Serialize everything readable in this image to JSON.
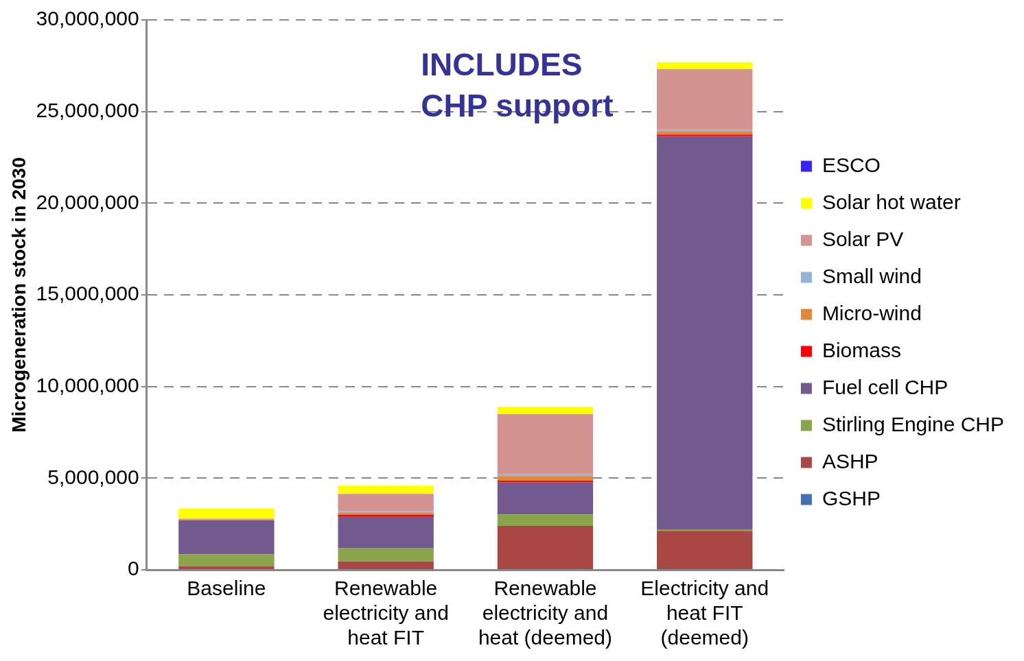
{
  "chart_data": {
    "type": "bar",
    "stacked": true,
    "ylabel": "Microgeneration stock in 2030",
    "categories": [
      "Baseline",
      "Renewable electricity and heat FIT",
      "Renewable electricity and heat (deemed)",
      "Electricity and heat FIT (deemed)"
    ],
    "series": [
      {
        "name": "GSHP",
        "color": "#4273b0",
        "values": [
          0,
          0,
          0,
          0
        ]
      },
      {
        "name": "ASHP",
        "color": "#a84744",
        "values": [
          200000,
          460000,
          2390000,
          2120000
        ]
      },
      {
        "name": "Stirling Engine CHP",
        "color": "#8aa44b",
        "values": [
          640000,
          740000,
          630000,
          90000
        ]
      },
      {
        "name": "Fuel cell CHP",
        "color": "#72598e",
        "values": [
          1850000,
          1720000,
          1750000,
          21440000
        ]
      },
      {
        "name": "Biomass",
        "color": "#ff0000",
        "values": [
          0,
          90000,
          90000,
          90000
        ]
      },
      {
        "name": "Micro-wind",
        "color": "#e0883c",
        "values": [
          0,
          120000,
          260000,
          160000
        ]
      },
      {
        "name": "Small wind",
        "color": "#95b3d7",
        "values": [
          0,
          80000,
          90000,
          110000
        ]
      },
      {
        "name": "Solar PV",
        "color": "#d39391",
        "values": [
          100000,
          930000,
          3280000,
          3310000
        ]
      },
      {
        "name": "Solar hot water",
        "color": "#ffff00",
        "values": [
          550000,
          450000,
          400000,
          370000
        ]
      },
      {
        "name": "ESCO",
        "color": "#3a1fff",
        "values": [
          0,
          0,
          0,
          0
        ]
      }
    ],
    "ylim": [
      0,
      30000000
    ],
    "yticks": [
      0,
      {
        "value": 5000000,
        "label": "5,000,000"
      },
      {
        "value": 10000000,
        "label": "10,000,000"
      },
      {
        "value": 15000000,
        "label": "15,000,000"
      },
      {
        "value": 20000000,
        "label": "20,000,000"
      },
      {
        "value": 25000000,
        "label": "25,000,000"
      },
      {
        "value": 30000000,
        "label": "30,000,000"
      }
    ],
    "grid": "y",
    "legend": "right",
    "annotations": [
      "INCLUDES\nCHP support"
    ]
  }
}
